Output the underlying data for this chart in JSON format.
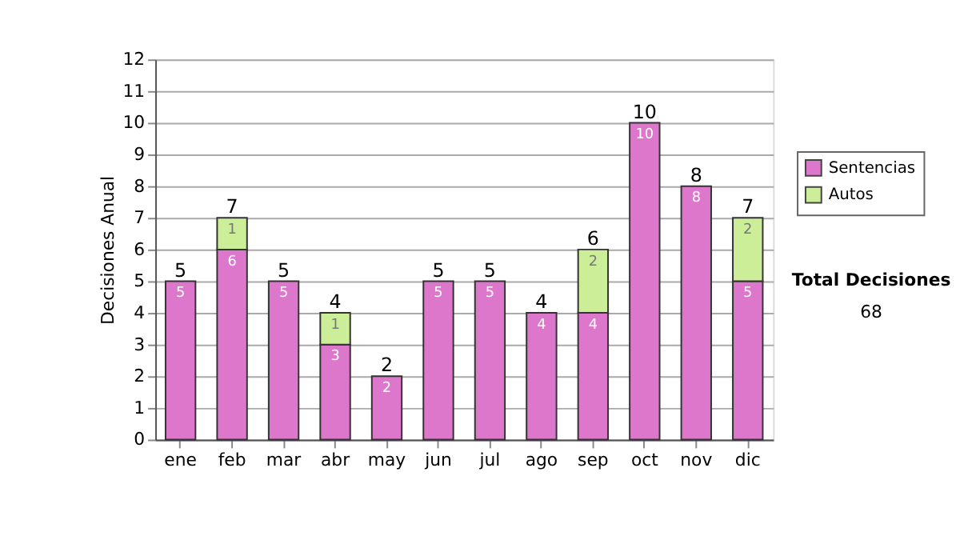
{
  "chart_data": {
    "type": "bar",
    "stacked": true,
    "ylabel": "Decisiones Anual",
    "categories": [
      "ene",
      "feb",
      "mar",
      "abr",
      "may",
      "jun",
      "jul",
      "ago",
      "sep",
      "oct",
      "nov",
      "dic"
    ],
    "series": [
      {
        "name": "Sentencias",
        "color": "#dd77cc",
        "values": [
          5,
          6,
          5,
          3,
          2,
          5,
          5,
          4,
          4,
          10,
          8,
          5
        ],
        "value_labels": [
          "5",
          "6",
          "5",
          "3",
          "2",
          "5",
          "5",
          "4",
          "4",
          "10",
          "8",
          "5"
        ]
      },
      {
        "name": "Autos",
        "color": "#ccee99",
        "values": [
          0,
          1,
          0,
          1,
          0,
          0,
          0,
          0,
          2,
          0,
          0,
          2
        ],
        "value_labels": [
          null,
          "1",
          null,
          "1",
          null,
          null,
          null,
          null,
          "2",
          null,
          null,
          "2"
        ]
      }
    ],
    "totals": [
      "5",
      "7",
      "5",
      "4",
      "2",
      "5",
      "5",
      "4",
      "6",
      "10",
      "8",
      "7"
    ],
    "ylim": [
      0,
      12
    ],
    "yticks": [
      0,
      1,
      2,
      3,
      4,
      5,
      6,
      7,
      8,
      9,
      10,
      11,
      12
    ],
    "grid": "y",
    "legend": "right",
    "annotations": [
      "Total Decisiones",
      "68"
    ]
  }
}
